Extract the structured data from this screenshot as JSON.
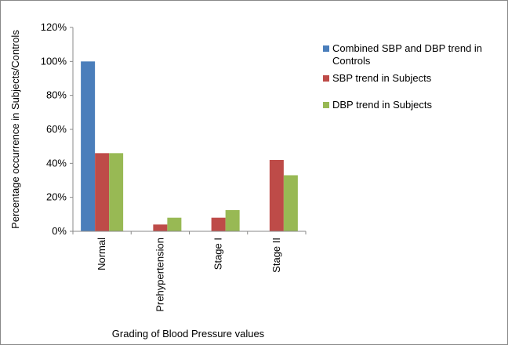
{
  "chart_data": {
    "type": "bar",
    "xlabel": "Grading of Blood Pressure values",
    "ylabel": "Percentage occurrence in Subjects/Controls",
    "categories": [
      "Normal",
      "Prehypertension",
      "Stage I",
      "Stage II"
    ],
    "series": [
      {
        "name": "Combined SBP and DBP trend in Controls",
        "color": "#4a7ebb",
        "values": [
          100,
          0,
          0,
          0
        ]
      },
      {
        "name": "SBP trend in Subjects",
        "color": "#be4b48",
        "values": [
          46,
          4,
          8,
          42
        ]
      },
      {
        "name": "DBP trend in Subjects",
        "color": "#98b954",
        "values": [
          46,
          8,
          12.5,
          33
        ]
      }
    ],
    "ylim": [
      0,
      120
    ],
    "yticks": [
      {
        "value": 0,
        "label": "0%"
      },
      {
        "value": 20,
        "label": "20%"
      },
      {
        "value": 40,
        "label": "40%"
      },
      {
        "value": 60,
        "label": "60%"
      },
      {
        "value": 80,
        "label": "80%"
      },
      {
        "value": 100,
        "label": "100%"
      },
      {
        "value": 120,
        "label": "120%"
      }
    ],
    "grid": false,
    "legend": "right"
  }
}
